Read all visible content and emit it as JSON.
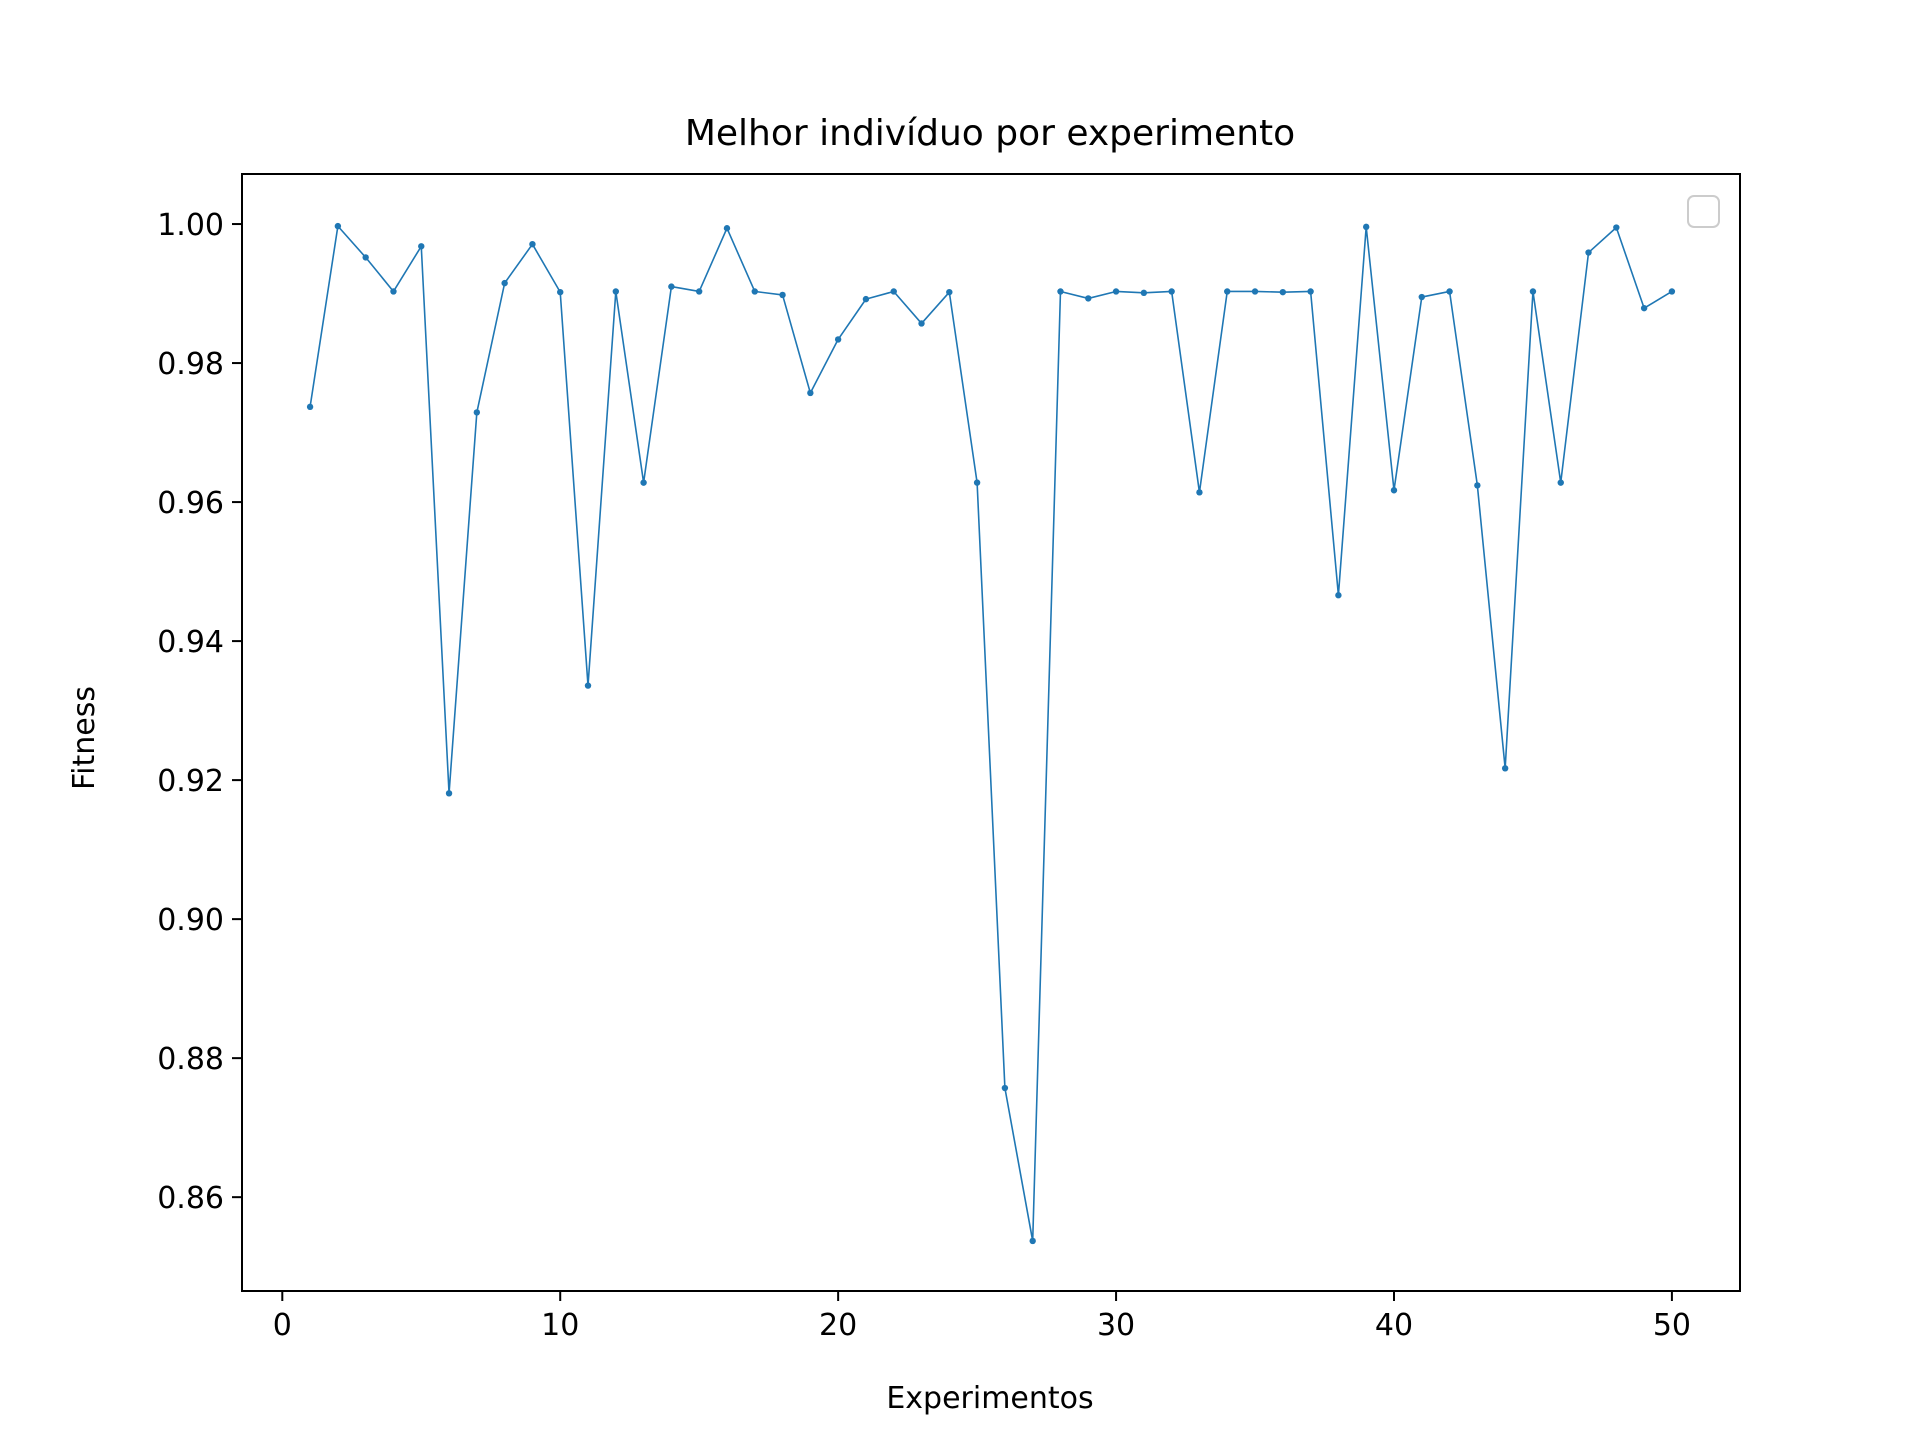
{
  "chart_data": {
    "type": "line",
    "title": "Melhor indivíduo por experimento",
    "xlabel": "Experimentos",
    "ylabel": "Fitness",
    "xlim": [
      -1.45,
      52.45
    ],
    "ylim": [
      0.8465,
      1.0072
    ],
    "xticks": [
      0,
      10,
      20,
      30,
      40,
      50
    ],
    "xtick_labels": [
      "0",
      "10",
      "20",
      "30",
      "40",
      "50"
    ],
    "yticks": [
      0.86,
      0.88,
      0.9,
      0.92,
      0.94,
      0.96,
      0.98,
      1.0
    ],
    "ytick_labels": [
      "0.86",
      "0.88",
      "0.90",
      "0.92",
      "0.94",
      "0.96",
      "0.98",
      "1.00"
    ],
    "grid": false,
    "legend": {
      "position": "top-right",
      "entries": []
    },
    "series": [
      {
        "color": "#1f77b4",
        "marker": "dot",
        "x": [
          1,
          2,
          3,
          4,
          5,
          6,
          7,
          8,
          9,
          10,
          11,
          12,
          13,
          14,
          15,
          16,
          17,
          18,
          19,
          20,
          21,
          22,
          23,
          24,
          25,
          26,
          27,
          28,
          29,
          30,
          31,
          32,
          33,
          34,
          35,
          36,
          37,
          38,
          39,
          40,
          41,
          42,
          43,
          44,
          45,
          46,
          47,
          48,
          49,
          50
        ],
        "values": [
          0.9737,
          0.9997,
          0.9952,
          0.9903,
          0.9968,
          0.9181,
          0.9729,
          0.9915,
          0.9971,
          0.9902,
          0.9336,
          0.9903,
          0.9628,
          0.991,
          0.9903,
          0.9994,
          0.9903,
          0.9898,
          0.9757,
          0.9834,
          0.9892,
          0.9903,
          0.9857,
          0.9902,
          0.9628,
          0.8757,
          0.8537,
          0.9903,
          0.9893,
          0.9903,
          0.9901,
          0.9903,
          0.9614,
          0.9903,
          0.9903,
          0.9902,
          0.9903,
          0.9466,
          0.9996,
          0.9617,
          0.9895,
          0.9903,
          0.9624,
          0.9217,
          0.9903,
          0.9628,
          0.9959,
          0.9995,
          0.9879,
          0.9903
        ]
      }
    ]
  }
}
